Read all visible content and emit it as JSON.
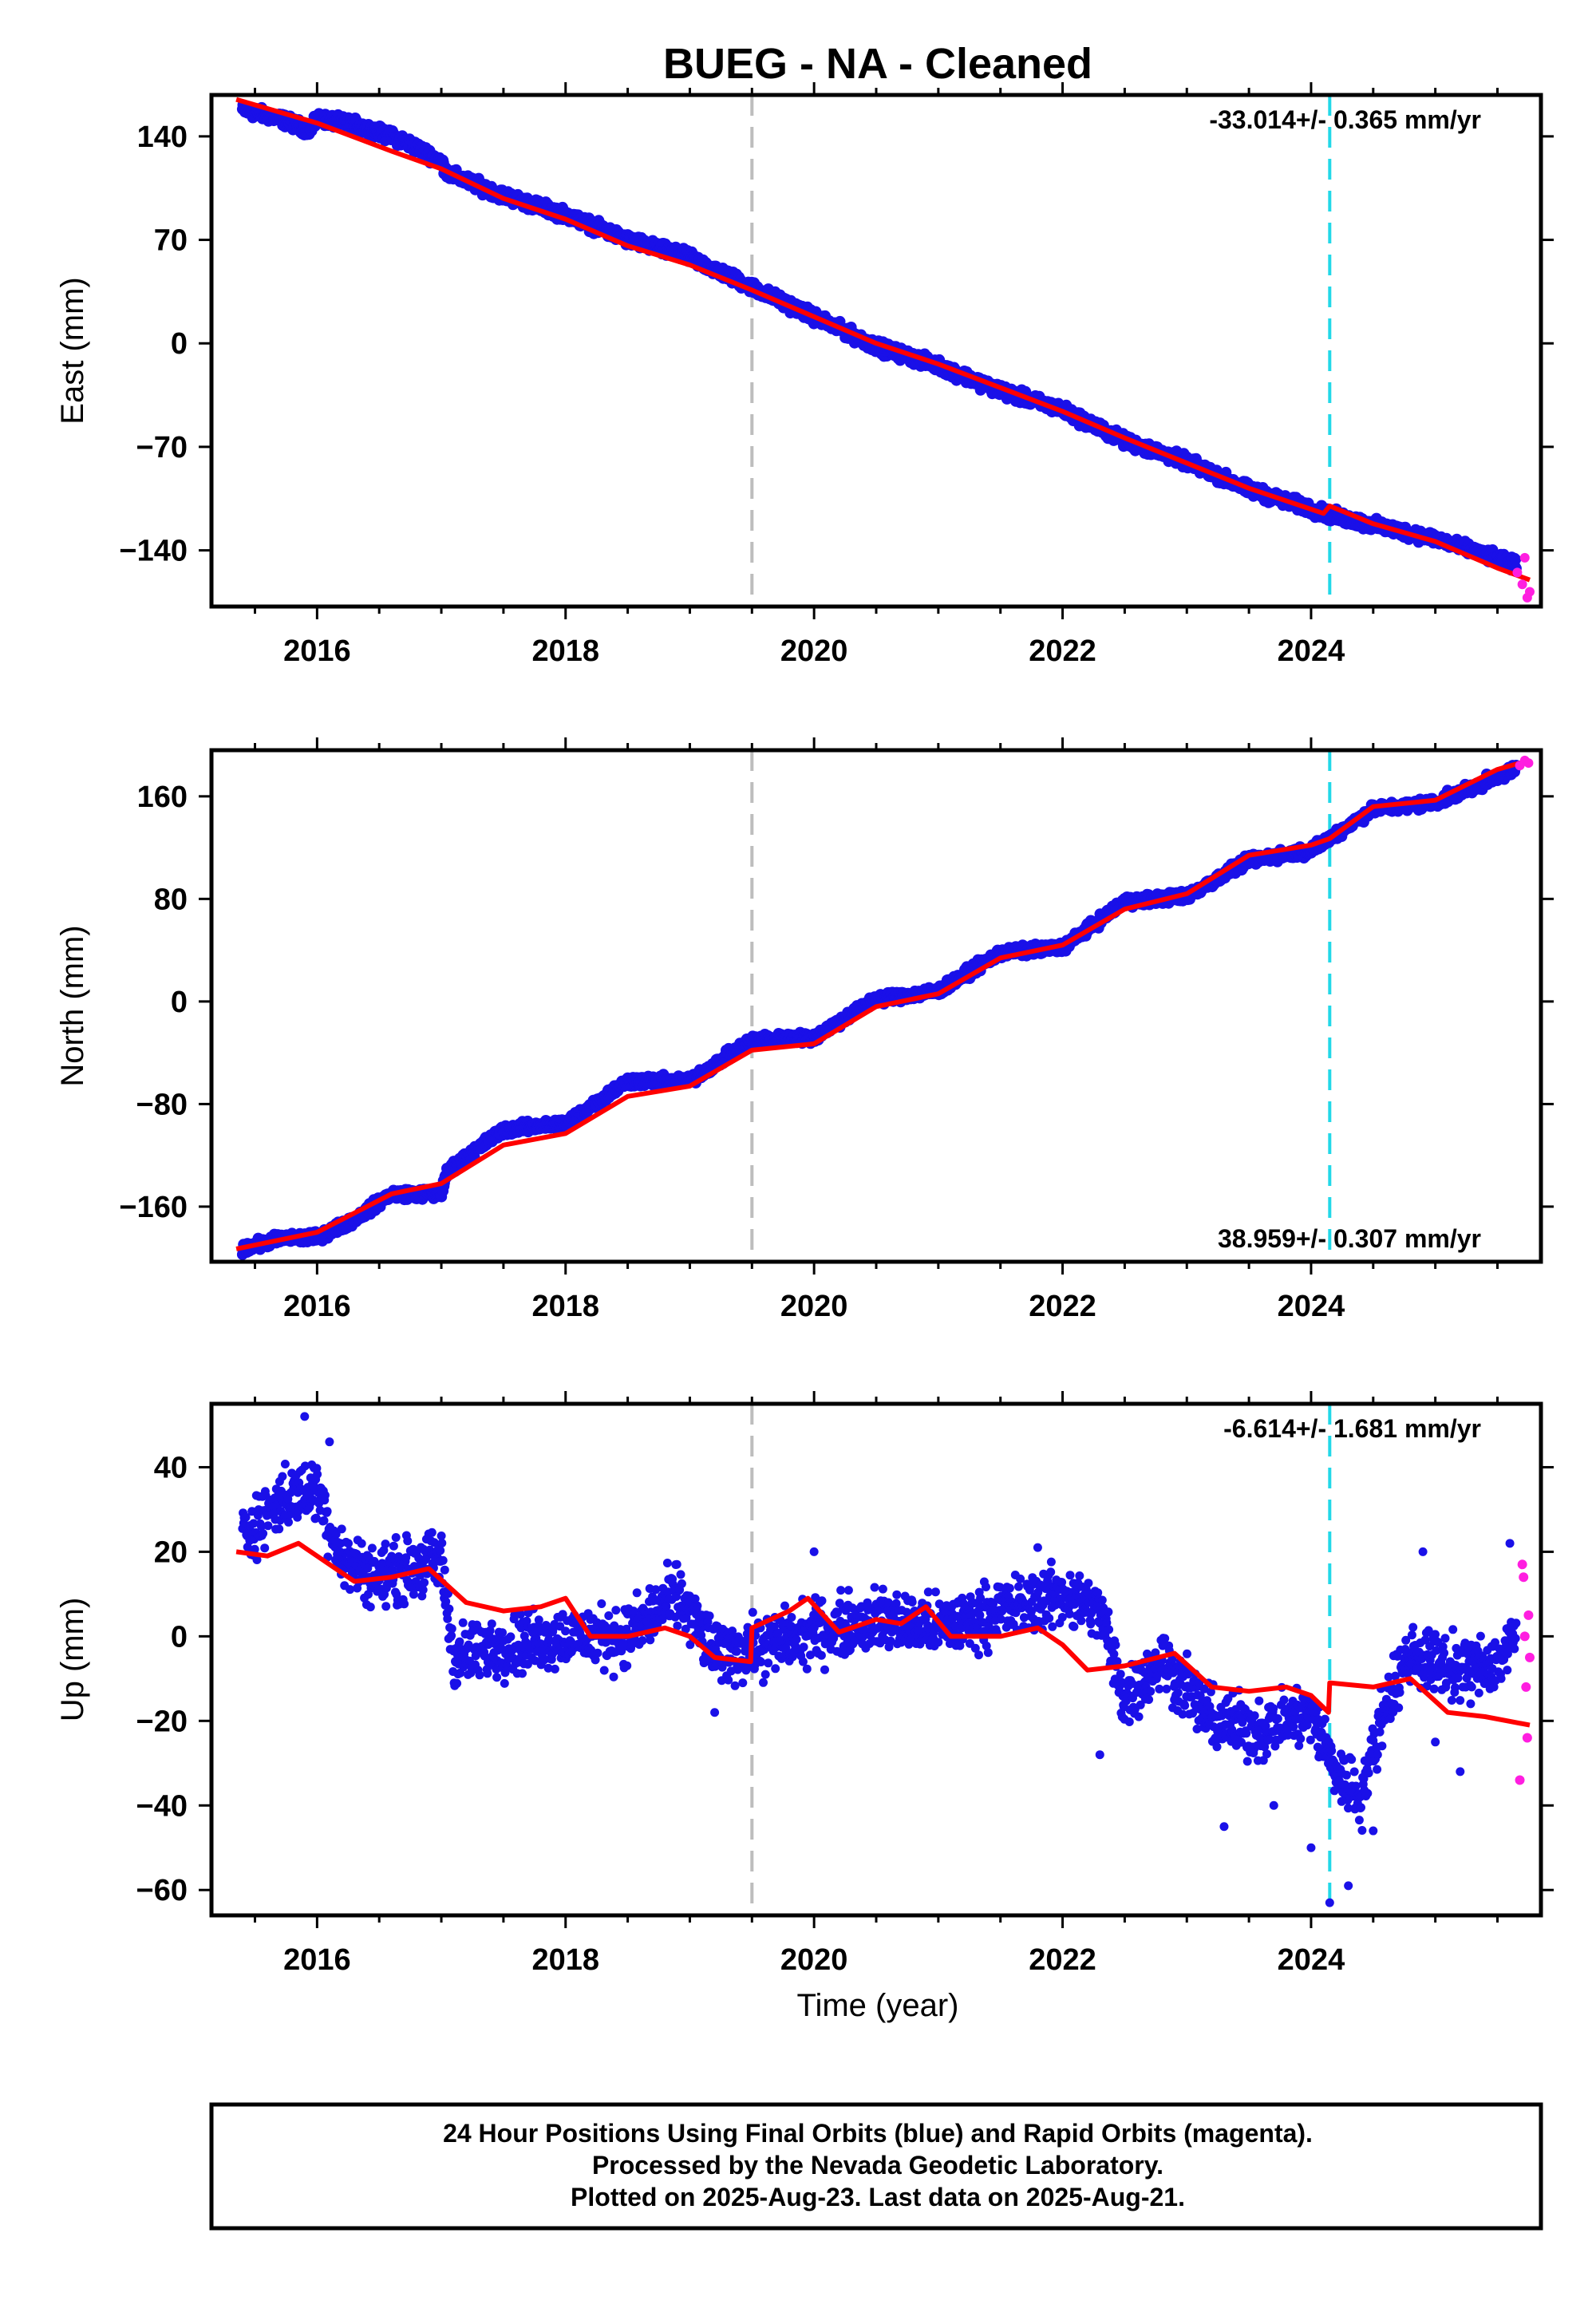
{
  "title": "BUEG  - NA - Cleaned",
  "xlabel": "Time (year)",
  "footer": {
    "lines": [
      "24 Hour Positions Using Final Orbits (blue) and Rapid Orbits (magenta).",
      "Processed by the Nevada Geodetic Laboratory.",
      "Plotted on 2025-Aug-23. Last data on 2025-Aug-21."
    ]
  },
  "colors": {
    "final": "#1a10e8",
    "rapid": "#ff1ee0",
    "model": "#ff0000",
    "gray_line": "#bdbdbd",
    "cyan_line": "#22d8e8"
  },
  "chart_data": [
    {
      "type": "scatter",
      "name": "east",
      "ylabel": "East (mm)",
      "rate": "-33.014+/- 0.365 mm/yr",
      "rate_pos": "top-right",
      "xlim": [
        2015.15,
        2025.85
      ],
      "ylim": [
        -178,
        168
      ],
      "xticks": [
        2016,
        2018,
        2020,
        2022,
        2024
      ],
      "yticks": [
        140,
        70,
        0,
        -70,
        -140
      ],
      "vlines": [
        {
          "x": 2019.5,
          "style": "gray"
        },
        {
          "x": 2024.15,
          "style": "cyan"
        }
      ],
      "final_series": [
        [
          2015.4,
          158
        ],
        [
          2015.7,
          152
        ],
        [
          2015.95,
          144
        ],
        [
          2016.0,
          152
        ],
        [
          2016.3,
          148
        ],
        [
          2016.7,
          137
        ],
        [
          2017.0,
          123
        ],
        [
          2017.05,
          115
        ],
        [
          2017.5,
          100
        ],
        [
          2018.0,
          87
        ],
        [
          2018.5,
          70
        ],
        [
          2019.0,
          58
        ],
        [
          2019.5,
          38
        ],
        [
          2020.0,
          18
        ],
        [
          2020.5,
          -2
        ],
        [
          2021.0,
          -15
        ],
        [
          2021.5,
          -32
        ],
        [
          2022.0,
          -45
        ],
        [
          2022.5,
          -66
        ],
        [
          2023.0,
          -80
        ],
        [
          2023.5,
          -99
        ],
        [
          2024.0,
          -112
        ],
        [
          2024.15,
          -116
        ],
        [
          2024.5,
          -123
        ],
        [
          2025.0,
          -132
        ],
        [
          2025.5,
          -146
        ],
        [
          2025.65,
          -150
        ]
      ],
      "rapid_series": [
        [
          2025.66,
          -155
        ],
        [
          2025.7,
          -163
        ],
        [
          2025.72,
          -145
        ],
        [
          2025.74,
          -172
        ],
        [
          2025.76,
          -168
        ]
      ],
      "model_series": [
        [
          2015.35,
          165
        ],
        [
          2016.0,
          149
        ],
        [
          2016.6,
          130
        ],
        [
          2017.0,
          118
        ],
        [
          2017.5,
          98
        ],
        [
          2018.0,
          84
        ],
        [
          2018.5,
          66
        ],
        [
          2019.0,
          53
        ],
        [
          2019.5,
          36
        ],
        [
          2020.0,
          18
        ],
        [
          2020.5,
          0
        ],
        [
          2021.0,
          -14
        ],
        [
          2021.5,
          -30
        ],
        [
          2022.0,
          -46
        ],
        [
          2022.5,
          -64
        ],
        [
          2023.0,
          -81
        ],
        [
          2023.5,
          -98
        ],
        [
          2024.1,
          -115
        ],
        [
          2024.15,
          -110
        ],
        [
          2024.5,
          -122
        ],
        [
          2025.0,
          -134
        ],
        [
          2025.5,
          -152
        ],
        [
          2025.76,
          -160
        ]
      ],
      "scatter_amp": 4
    },
    {
      "type": "scatter",
      "name": "north",
      "ylabel": "North (mm)",
      "rate": "38.959+/- 0.307 mm/yr",
      "rate_pos": "bottom-right",
      "xlim": [
        2015.15,
        2025.85
      ],
      "ylim": [
        -203,
        196
      ],
      "xticks": [
        2016,
        2018,
        2020,
        2022,
        2024
      ],
      "yticks": [
        160,
        80,
        0,
        -80,
        -160
      ],
      "vlines": [
        {
          "x": 2019.5,
          "style": "gray"
        },
        {
          "x": 2024.15,
          "style": "cyan"
        }
      ],
      "final_series": [
        [
          2015.4,
          -193
        ],
        [
          2015.7,
          -185
        ],
        [
          2016.0,
          -184
        ],
        [
          2016.3,
          -170
        ],
        [
          2016.6,
          -150
        ],
        [
          2017.0,
          -150
        ],
        [
          2017.05,
          -132
        ],
        [
          2017.5,
          -100
        ],
        [
          2018.0,
          -95
        ],
        [
          2018.5,
          -62
        ],
        [
          2019.0,
          -62
        ],
        [
          2019.5,
          -30
        ],
        [
          2020.0,
          -28
        ],
        [
          2020.5,
          2
        ],
        [
          2021.0,
          8
        ],
        [
          2021.5,
          38
        ],
        [
          2022.0,
          42
        ],
        [
          2022.5,
          78
        ],
        [
          2023.0,
          82
        ],
        [
          2023.5,
          110
        ],
        [
          2024.0,
          118
        ],
        [
          2024.5,
          150
        ],
        [
          2025.0,
          155
        ],
        [
          2025.5,
          175
        ],
        [
          2025.65,
          182
        ]
      ],
      "rapid_series": [
        [
          2025.68,
          184
        ],
        [
          2025.72,
          188
        ],
        [
          2025.75,
          186
        ]
      ],
      "model_series": [
        [
          2015.35,
          -193
        ],
        [
          2015.7,
          -186
        ],
        [
          2016.0,
          -180
        ],
        [
          2016.3,
          -165
        ],
        [
          2016.6,
          -150
        ],
        [
          2017.0,
          -142
        ],
        [
          2017.5,
          -112
        ],
        [
          2018.0,
          -103
        ],
        [
          2018.5,
          -74
        ],
        [
          2019.0,
          -66
        ],
        [
          2019.5,
          -38
        ],
        [
          2020.0,
          -33
        ],
        [
          2020.5,
          -4
        ],
        [
          2021.0,
          6
        ],
        [
          2021.5,
          34
        ],
        [
          2022.0,
          44
        ],
        [
          2022.5,
          72
        ],
        [
          2023.0,
          84
        ],
        [
          2023.5,
          114
        ],
        [
          2024.0,
          122
        ],
        [
          2024.15,
          127
        ],
        [
          2024.5,
          152
        ],
        [
          2025.0,
          157
        ],
        [
          2025.5,
          181
        ],
        [
          2025.75,
          188
        ]
      ],
      "scatter_amp": 4
    },
    {
      "type": "scatter",
      "name": "up",
      "ylabel": "Up (mm)",
      "rate": "-6.614+/- 1.681 mm/yr",
      "rate_pos": "top-right",
      "xlim": [
        2015.15,
        2025.85
      ],
      "ylim": [
        -66,
        55
      ],
      "xticks": [
        2016,
        2018,
        2020,
        2022,
        2024
      ],
      "yticks": [
        40,
        20,
        0,
        -20,
        -40,
        -60
      ],
      "vlines": [
        {
          "x": 2019.5,
          "style": "gray"
        },
        {
          "x": 2024.15,
          "style": "cyan"
        }
      ],
      "final_series": [
        [
          2015.4,
          24
        ],
        [
          2015.7,
          32
        ],
        [
          2016.0,
          35
        ],
        [
          2016.2,
          18
        ],
        [
          2016.5,
          14
        ],
        [
          2017.0,
          18
        ],
        [
          2017.1,
          -5
        ],
        [
          2017.5,
          -2
        ],
        [
          2018.0,
          0
        ],
        [
          2018.5,
          0
        ],
        [
          2018.9,
          10
        ],
        [
          2019.2,
          -4
        ],
        [
          2019.5,
          -3
        ],
        [
          2020.0,
          1
        ],
        [
          2020.5,
          4
        ],
        [
          2021.0,
          2
        ],
        [
          2021.5,
          6
        ],
        [
          2022.0,
          10
        ],
        [
          2022.3,
          6
        ],
        [
          2022.5,
          -15
        ],
        [
          2022.8,
          -5
        ],
        [
          2023.2,
          -20
        ],
        [
          2023.6,
          -22
        ],
        [
          2024.0,
          -18
        ],
        [
          2024.2,
          -32
        ],
        [
          2024.4,
          -38
        ],
        [
          2024.6,
          -16
        ],
        [
          2024.8,
          -4
        ],
        [
          2025.2,
          -8
        ],
        [
          2025.5,
          -6
        ],
        [
          2025.65,
          0
        ]
      ],
      "rapid_series": [
        [
          2025.68,
          -34
        ],
        [
          2025.7,
          17
        ],
        [
          2025.71,
          14
        ],
        [
          2025.72,
          0
        ],
        [
          2025.73,
          -12
        ],
        [
          2025.74,
          -24
        ],
        [
          2025.75,
          5
        ],
        [
          2025.76,
          -5
        ]
      ],
      "model_series": [
        [
          2015.35,
          20
        ],
        [
          2015.6,
          19
        ],
        [
          2015.85,
          22
        ],
        [
          2016.0,
          19
        ],
        [
          2016.3,
          13
        ],
        [
          2016.6,
          14
        ],
        [
          2016.9,
          16
        ],
        [
          2017.2,
          8
        ],
        [
          2017.5,
          6
        ],
        [
          2017.8,
          7
        ],
        [
          2018.0,
          9
        ],
        [
          2018.2,
          0
        ],
        [
          2018.5,
          0
        ],
        [
          2018.8,
          2
        ],
        [
          2019.0,
          0
        ],
        [
          2019.2,
          -5
        ],
        [
          2019.49,
          -6
        ],
        [
          2019.5,
          2
        ],
        [
          2019.8,
          6
        ],
        [
          2019.95,
          9
        ],
        [
          2020.2,
          1
        ],
        [
          2020.5,
          4
        ],
        [
          2020.7,
          3
        ],
        [
          2020.9,
          7
        ],
        [
          2021.1,
          0
        ],
        [
          2021.5,
          0
        ],
        [
          2021.8,
          2
        ],
        [
          2022.0,
          -2
        ],
        [
          2022.2,
          -8
        ],
        [
          2022.5,
          -7
        ],
        [
          2022.9,
          -4
        ],
        [
          2023.2,
          -12
        ],
        [
          2023.5,
          -13
        ],
        [
          2023.8,
          -12
        ],
        [
          2024.0,
          -14
        ],
        [
          2024.14,
          -18
        ],
        [
          2024.15,
          -11
        ],
        [
          2024.5,
          -12
        ],
        [
          2024.8,
          -10
        ],
        [
          2025.1,
          -18
        ],
        [
          2025.4,
          -19
        ],
        [
          2025.76,
          -21
        ]
      ],
      "scatter_amp": 7,
      "outliers": [
        [
          2015.9,
          52
        ],
        [
          2016.1,
          46
        ],
        [
          2019.2,
          -18
        ],
        [
          2020.0,
          20
        ],
        [
          2021.8,
          21
        ],
        [
          2022.3,
          -28
        ],
        [
          2022.9,
          -15
        ],
        [
          2023.3,
          -45
        ],
        [
          2023.7,
          -40
        ],
        [
          2024.0,
          -50
        ],
        [
          2024.15,
          -63
        ],
        [
          2024.3,
          -59
        ],
        [
          2024.5,
          -46
        ],
        [
          2024.9,
          20
        ],
        [
          2025.0,
          -25
        ],
        [
          2025.2,
          -32
        ],
        [
          2025.6,
          22
        ]
      ]
    }
  ]
}
